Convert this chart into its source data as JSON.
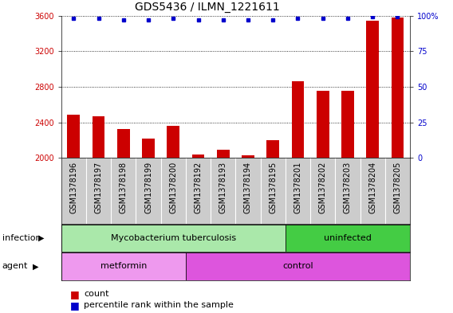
{
  "title": "GDS5436 / ILMN_1221611",
  "samples": [
    "GSM1378196",
    "GSM1378197",
    "GSM1378198",
    "GSM1378199",
    "GSM1378200",
    "GSM1378192",
    "GSM1378193",
    "GSM1378194",
    "GSM1378195",
    "GSM1378201",
    "GSM1378202",
    "GSM1378203",
    "GSM1378204",
    "GSM1378205"
  ],
  "counts": [
    2490,
    2470,
    2330,
    2220,
    2360,
    2040,
    2090,
    2030,
    2200,
    2860,
    2760,
    2755,
    3540,
    3580
  ],
  "percentile_ranks": [
    98,
    98,
    97,
    97,
    98,
    97,
    97,
    97,
    97,
    98,
    98,
    98,
    99,
    99
  ],
  "ylim_left": [
    2000,
    3600
  ],
  "ylim_right": [
    0,
    100
  ],
  "yticks_left": [
    2000,
    2400,
    2800,
    3200,
    3600
  ],
  "yticks_right": [
    0,
    25,
    50,
    75,
    100
  ],
  "bar_color": "#cc0000",
  "dot_color": "#0000cc",
  "bar_width": 0.5,
  "infection_groups": [
    {
      "label": "Mycobacterium tuberculosis",
      "start": 0,
      "end": 9,
      "color": "#aaeea a"
    },
    {
      "label": "uninfected",
      "start": 9,
      "end": 14,
      "color": "#44dd44"
    }
  ],
  "agent_groups": [
    {
      "label": "metformin",
      "start": 0,
      "end": 5,
      "color": "#ee88ee"
    },
    {
      "label": "control",
      "start": 5,
      "end": 14,
      "color": "#dd44dd"
    }
  ],
  "infection_label": "infection",
  "agent_label": "agent",
  "legend_count_label": "count",
  "legend_percentile_label": "percentile rank within the sample",
  "plot_bg": "#ffffff",
  "label_bg": "#cccccc",
  "grid_color": "#000000",
  "title_fontsize": 10,
  "tick_fontsize": 7,
  "label_fontsize": 8,
  "sample_fontsize": 7
}
